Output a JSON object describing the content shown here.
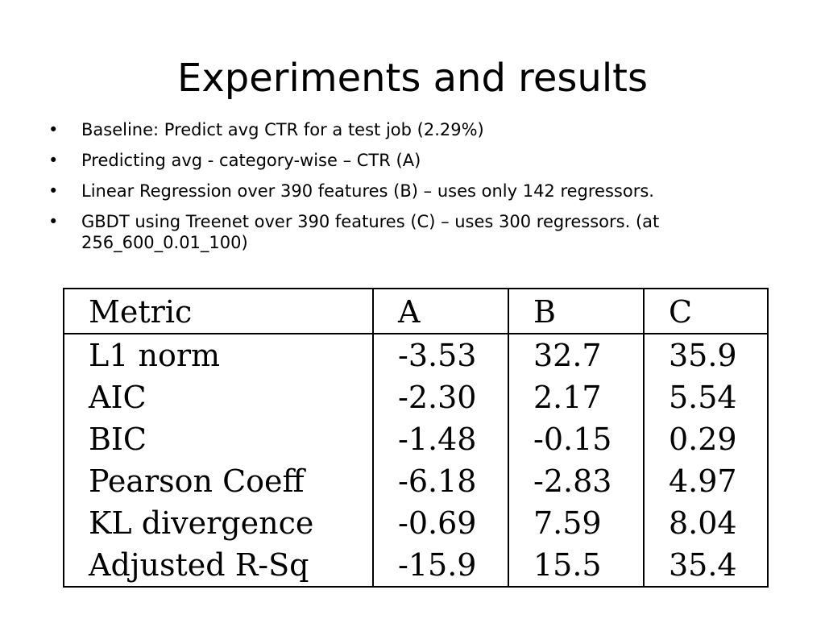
{
  "slide": {
    "title": "Experiments and results"
  },
  "bullets": [
    "Baseline: Predict avg CTR for a test job (2.29%)",
    "Predicting avg - category-wise – CTR (A)",
    "Linear Regression over 390 features (B) – uses only 142 regressors.",
    "GBDT using Treenet over 390 features (C) – uses 300 regressors. (at 256_600_0.01_100)"
  ],
  "bullet_glyph": "•",
  "table": {
    "headers": [
      "Metric",
      "A",
      "B",
      "C"
    ],
    "rows": [
      [
        "L1 norm",
        "-3.53",
        "32.7",
        "35.9"
      ],
      [
        "AIC",
        "-2.30",
        "2.17",
        "5.54"
      ],
      [
        "BIC",
        "-1.48",
        "-0.15",
        "0.29"
      ],
      [
        "Pearson Coeff",
        "-6.18",
        "-2.83",
        "4.97"
      ],
      [
        "KL divergence",
        "-0.69",
        "7.59",
        "8.04"
      ],
      [
        "Adjusted R-Sq",
        "-15.9",
        "15.5",
        "35.4"
      ]
    ]
  }
}
